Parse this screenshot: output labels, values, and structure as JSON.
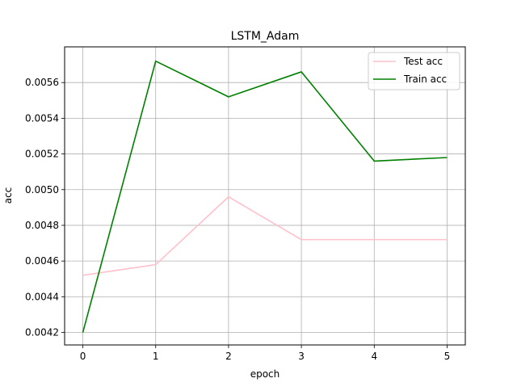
{
  "chart_data": {
    "type": "line",
    "title": "LSTM_Adam",
    "xlabel": "epoch",
    "ylabel": "acc",
    "x": [
      0,
      1,
      2,
      3,
      4,
      5
    ],
    "xticks": [
      "0",
      "1",
      "2",
      "3",
      "4",
      "5"
    ],
    "xlim": [
      -0.25,
      5.25
    ],
    "ylim": [
      0.00413,
      0.0058
    ],
    "yticks": [
      "0.0042",
      "0.0044",
      "0.0046",
      "0.0048",
      "0.0050",
      "0.0052",
      "0.0054",
      "0.0056"
    ],
    "grid": true,
    "legend_position": "top-right",
    "series": [
      {
        "name": "Test acc",
        "color": "#ffc0cb",
        "values": [
          0.00452,
          0.00458,
          0.00496,
          0.00472,
          0.00472,
          0.00472
        ]
      },
      {
        "name": "Train acc",
        "color": "#008000",
        "values": [
          0.0042,
          0.00572,
          0.00552,
          0.00566,
          0.00516,
          0.00518
        ]
      }
    ]
  }
}
